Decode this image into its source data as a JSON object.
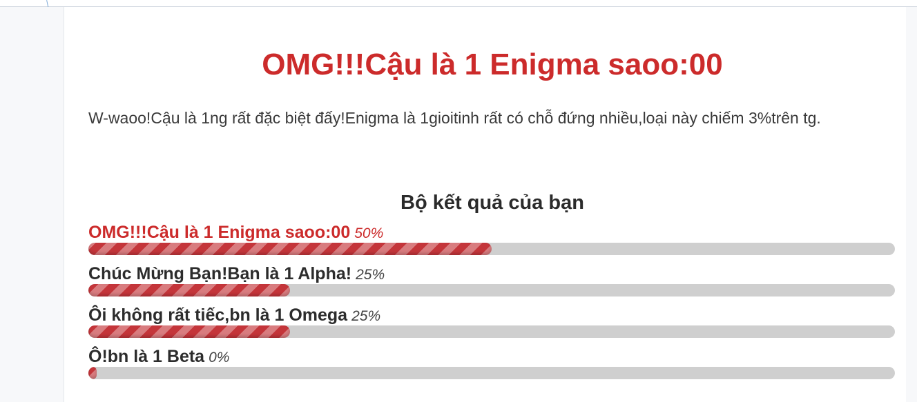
{
  "result": {
    "title": "OMG!!!Cậu là 1 Enigma saoo:00",
    "description": "W-waoo!Cậu là 1ng rất đặc biệt đấy!Enigma là 1gioitinh rất có chỗ đứng nhiều,loại này chiếm 3%trên tg."
  },
  "results_heading": "Bộ kết quả của bạn",
  "results": [
    {
      "label": "OMG!!!Cậu là 1 Enigma saoo:00",
      "percent_label": "50%",
      "percent": 50
    },
    {
      "label": "Chúc Mừng Bạn!Bạn là 1 Alpha!",
      "percent_label": "25%",
      "percent": 25
    },
    {
      "label": "Ôi không rất tiếc,bn là 1 Omega",
      "percent_label": "25%",
      "percent": 25
    },
    {
      "label": "Ô!bn là 1 Beta",
      "percent_label": "0%",
      "percent": 0
    }
  ],
  "colors": {
    "accent": "#cc2b2b",
    "track": "#cfcfcf",
    "text": "#2c2c2c"
  }
}
